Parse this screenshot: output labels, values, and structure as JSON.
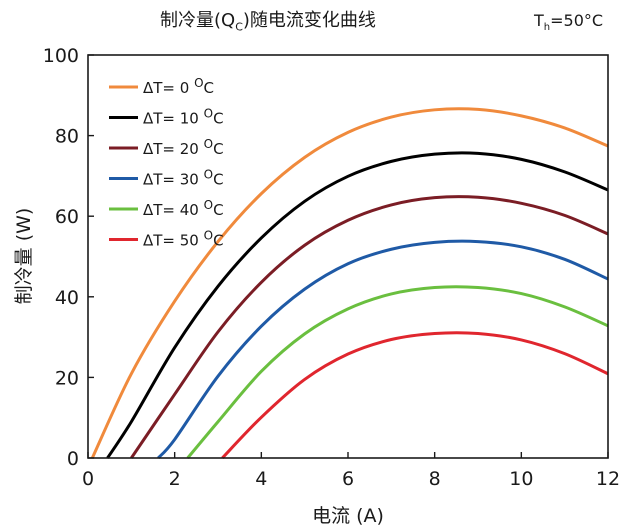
{
  "chart_data": {
    "type": "line",
    "title": {
      "prefix": "制冷量",
      "paren_open": "(",
      "q": "Q",
      "q_sub": "C",
      "paren_close": ")",
      "suffix": "随电流变化曲线"
    },
    "condition": {
      "main": "T",
      "sub": "h",
      "rest": "=50°C"
    },
    "xlabel": "电流 (A)",
    "ylabel": "制冷量 (W)",
    "xlim": [
      0,
      12
    ],
    "ylim": [
      0,
      100
    ],
    "xticks": [
      0,
      2,
      4,
      6,
      8,
      10,
      12
    ],
    "yticks": [
      0,
      20,
      40,
      60,
      80,
      100
    ],
    "x": [
      0,
      1,
      2,
      3,
      4,
      5,
      6,
      7,
      8,
      9,
      10,
      11,
      12
    ],
    "series": [
      {
        "name": "ΔT= 0 OC",
        "legend_text": "ΔT= 0",
        "legend_sup": "O",
        "legend_unit": "C",
        "color": "#f08a3c",
        "values": [
          null,
          20.9,
          38.9,
          53.7,
          65.6,
          74.6,
          80.8,
          84.6,
          86.4,
          86.5,
          84.9,
          81.9,
          77.4
        ]
      },
      {
        "name": "ΔT= 10 OC",
        "legend_text": "ΔT= 10",
        "legend_sup": "O",
        "legend_unit": "C",
        "color": "#000000",
        "values": [
          null,
          9.0,
          27.4,
          42.6,
          54.6,
          63.7,
          69.9,
          73.6,
          75.4,
          75.6,
          74.1,
          71.0,
          66.5
        ]
      },
      {
        "name": "ΔT= 20 OC",
        "legend_text": "ΔT= 20",
        "legend_sup": "O",
        "legend_unit": "C",
        "color": "#7b1d25",
        "values": [
          null,
          null,
          15.8,
          31.3,
          43.6,
          52.8,
          59.0,
          62.8,
          64.6,
          64.7,
          63.2,
          60.2,
          55.6
        ]
      },
      {
        "name": "ΔT= 30 OC",
        "legend_text": "ΔT= 30",
        "legend_sup": "O",
        "legend_unit": "C",
        "color": "#1f5aa6",
        "values": [
          null,
          null,
          4.6,
          20.3,
          32.7,
          41.9,
          48.2,
          51.8,
          53.5,
          53.7,
          52.4,
          49.3,
          44.4
        ]
      },
      {
        "name": "ΔT= 40 OC",
        "legend_text": "ΔT= 40",
        "legend_sup": "O",
        "legend_unit": "C",
        "color": "#6abf3f",
        "values": [
          null,
          null,
          null,
          9.0,
          21.5,
          30.8,
          37.0,
          40.7,
          42.3,
          42.3,
          40.8,
          37.5,
          32.8
        ]
      },
      {
        "name": "ΔT= 50 OC",
        "legend_text": "ΔT= 50",
        "legend_sup": "O",
        "legend_unit": "C",
        "color": "#e0262e",
        "values": [
          null,
          null,
          null,
          null,
          10.1,
          19.5,
          25.8,
          29.4,
          30.9,
          30.9,
          29.3,
          25.9,
          20.9
        ]
      }
    ],
    "x_start": [
      0.1,
      0.45,
      1.0,
      1.62,
      2.3,
      3.1
    ],
    "legend_position": "top-left",
    "grid": false
  }
}
